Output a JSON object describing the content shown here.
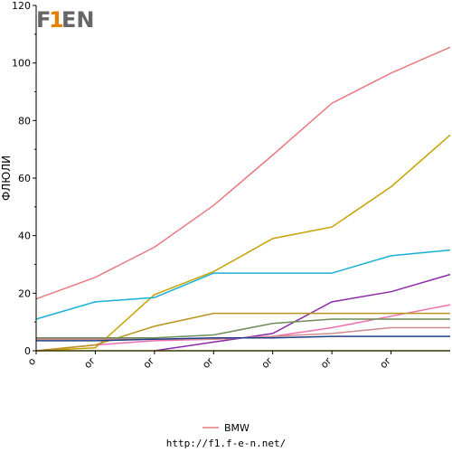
{
  "logo": {
    "text_left": "F",
    "text_num": "1",
    "text_right": "EN"
  },
  "footer": {
    "url": "http://f1.f-e-n.net/"
  },
  "chart_data": {
    "type": "line",
    "ylabel": "ФЛЮЛИ",
    "ylim": [
      0,
      120
    ],
    "yticks": [
      0,
      20,
      40,
      60,
      80,
      100,
      120
    ],
    "x_tick_labels": [
      "o",
      "or",
      "or",
      "or",
      "or",
      "or",
      "or"
    ],
    "xlim": [
      0,
      7
    ],
    "grid": false,
    "legend_position": "bottom-center",
    "legend": [
      "BMW"
    ],
    "series": [
      {
        "name": "BMW",
        "color": "#e87a80",
        "x": [
          0,
          1,
          2,
          3,
          4,
          5,
          6,
          7
        ],
        "y": [
          18,
          25.5,
          36,
          50.5,
          68,
          86,
          96.5,
          105.5
        ]
      },
      {
        "color": "#c8a200",
        "x": [
          0,
          1,
          2,
          3,
          4,
          5,
          6,
          7
        ],
        "y": [
          0,
          1,
          19.5,
          27.5,
          39,
          43,
          57,
          75
        ]
      },
      {
        "color": "#1ab0d6",
        "x": [
          0,
          1,
          2,
          3,
          4,
          5,
          6,
          7
        ],
        "y": [
          11,
          17,
          18.5,
          27,
          27,
          27,
          33,
          35
        ]
      },
      {
        "color": "#8a2aa8",
        "x": [
          2,
          3,
          4,
          5,
          6,
          7
        ],
        "y": [
          0,
          3,
          6,
          17,
          20.5,
          26.5
        ]
      },
      {
        "color": "#f06eb0",
        "x": [
          0,
          1,
          2,
          3,
          4,
          5,
          6,
          7
        ],
        "y": [
          0,
          2,
          3.5,
          4,
          5,
          8,
          12,
          16
        ]
      },
      {
        "color": "#b8941a",
        "x": [
          0,
          1,
          2,
          3,
          4,
          5,
          6,
          7
        ],
        "y": [
          0,
          2,
          8.5,
          13,
          13,
          13,
          13,
          13
        ]
      },
      {
        "color": "#6e8c5a",
        "x": [
          0,
          1,
          2,
          3,
          4,
          5,
          6,
          7
        ],
        "y": [
          4.5,
          4.5,
          4.5,
          5.5,
          9.5,
          11,
          11,
          11
        ]
      },
      {
        "color": "#d28a8a",
        "x": [
          0,
          1,
          2,
          3,
          4,
          5,
          6,
          7
        ],
        "y": [
          4,
          4,
          4,
          4,
          5,
          6,
          8,
          8
        ]
      },
      {
        "color": "#1f3f8a",
        "x": [
          0,
          1,
          2,
          3,
          4,
          5,
          6,
          7
        ],
        "y": [
          3.5,
          3.5,
          4,
          4.5,
          4.5,
          5,
          5,
          5
        ]
      },
      {
        "color": "#a0a000",
        "x": [
          0,
          1,
          2,
          3,
          4,
          5,
          6,
          7
        ],
        "y": [
          0,
          0,
          0,
          0,
          0,
          0,
          0,
          0
        ]
      }
    ]
  }
}
